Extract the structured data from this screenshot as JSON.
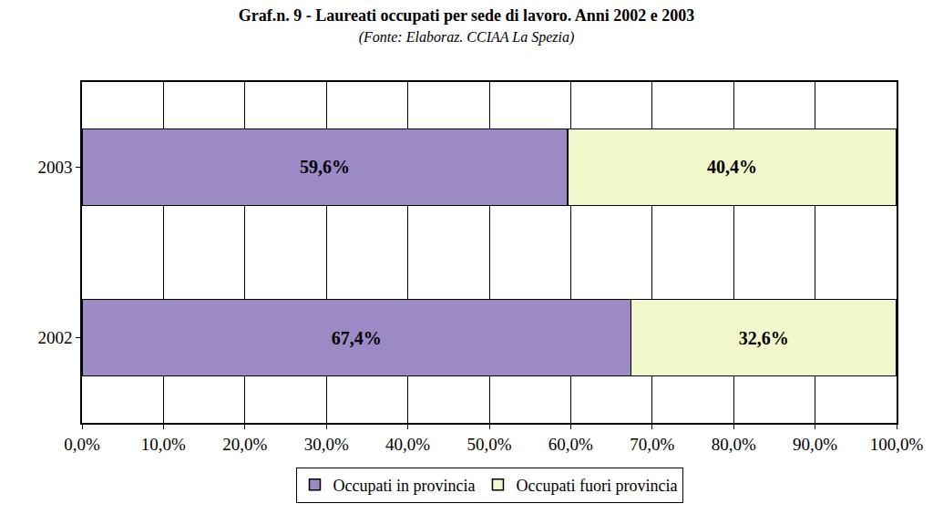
{
  "chart_data": {
    "type": "bar",
    "title": "Graf.n. 9 - Laureati occupati per sede di lavoro. Anni 2002 e 2003",
    "subtitle": "(Fonte: Elaboraz. CCIAA La Spezia)",
    "orientation": "horizontal",
    "stacked": true,
    "data_labels": true,
    "grid": true,
    "legend": "bottom",
    "categories": [
      "2002",
      "2003"
    ],
    "series": [
      {
        "name": "Occupati in provincia",
        "color": "#9b8ac4",
        "values": [
          67.4,
          59.6
        ],
        "value_labels": [
          "67,4%",
          "59,6%"
        ]
      },
      {
        "name": "Occupati fuori provincia",
        "color": "#f2f7cc",
        "values": [
          32.6,
          40.4
        ],
        "value_labels": [
          "32,6%",
          "40,4%"
        ]
      }
    ],
    "xlim": [
      0,
      100
    ],
    "xticks": [
      {
        "value": 0,
        "label": "0,0%"
      },
      {
        "value": 10,
        "label": "10,0%"
      },
      {
        "value": 20,
        "label": "20,0%"
      },
      {
        "value": 30,
        "label": "30,0%"
      },
      {
        "value": 40,
        "label": "40,0%"
      },
      {
        "value": 50,
        "label": "50,0%"
      },
      {
        "value": 60,
        "label": "60,0%"
      },
      {
        "value": 70,
        "label": "70,0%"
      },
      {
        "value": 80,
        "label": "80,0%"
      },
      {
        "value": 90,
        "label": "90,0%"
      },
      {
        "value": 100,
        "label": "100,0%"
      }
    ]
  }
}
